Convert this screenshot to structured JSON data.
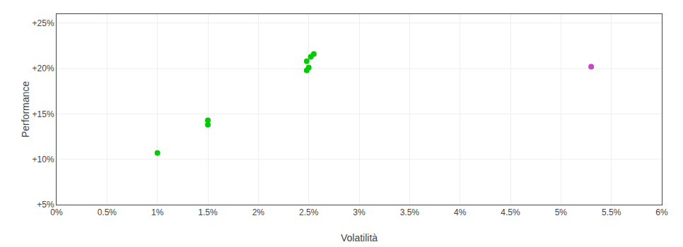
{
  "chart_data": {
    "type": "scatter",
    "xlabel": "Volatilità",
    "ylabel": "Performance",
    "xlim": [
      0.0,
      0.06
    ],
    "ylim": [
      0.05,
      0.26
    ],
    "xticks": [
      {
        "value": 0.0,
        "label": "0%"
      },
      {
        "value": 0.005,
        "label": "0.5%"
      },
      {
        "value": 0.01,
        "label": "1%"
      },
      {
        "value": 0.015,
        "label": "1.5%"
      },
      {
        "value": 0.02,
        "label": "2%"
      },
      {
        "value": 0.025,
        "label": "2.5%"
      },
      {
        "value": 0.03,
        "label": "3%"
      },
      {
        "value": 0.035,
        "label": "3.5%"
      },
      {
        "value": 0.04,
        "label": "4%"
      },
      {
        "value": 0.045,
        "label": "4.5%"
      },
      {
        "value": 0.05,
        "label": "5%"
      },
      {
        "value": 0.055,
        "label": "5.5%"
      },
      {
        "value": 0.06,
        "label": "6%"
      }
    ],
    "yticks": [
      {
        "value": 0.05,
        "label": "+5%"
      },
      {
        "value": 0.1,
        "label": "+10%"
      },
      {
        "value": 0.15,
        "label": "+15%"
      },
      {
        "value": 0.2,
        "label": "+20%"
      },
      {
        "value": 0.25,
        "label": "+25%"
      }
    ],
    "grid": true,
    "marker": "circle",
    "series": [
      {
        "color": "#00cc00",
        "x": [
          0.01,
          0.015,
          0.015,
          0.0248,
          0.0252,
          0.0255,
          0.0248,
          0.025
        ],
        "values": [
          0.107,
          0.138,
          0.143,
          0.208,
          0.213,
          0.216,
          0.198,
          0.201
        ]
      },
      {
        "color": "#cc44cc",
        "x": [
          0.053
        ],
        "values": [
          0.202
        ]
      }
    ]
  }
}
